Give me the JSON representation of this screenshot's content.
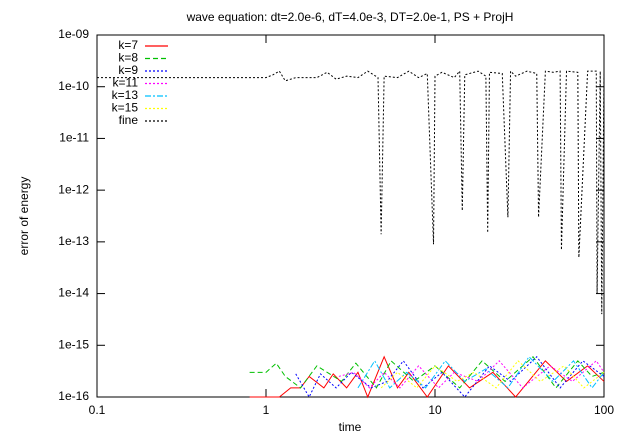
{
  "chart_data": {
    "type": "line",
    "title": "wave equation: dt=2.0e-6, dT=4.0e-3, DT=2.0e-1, PS + ProjH",
    "x_label": "time",
    "y_label": "error of energy",
    "log_x": true,
    "log_y": true,
    "legend": "top-left",
    "xlim": [
      0.1,
      100
    ],
    "xticks": [
      0.1,
      1,
      10,
      100
    ],
    "ylim": [
      1e-16,
      1e-09
    ],
    "yticks": [
      {
        "value": 1e-09,
        "label": "1e-09"
      },
      {
        "value": 1e-10,
        "label": "1e-10"
      },
      {
        "value": 1e-11,
        "label": "1e-11"
      },
      {
        "value": 1e-12,
        "label": "1e-12"
      },
      {
        "value": 1e-13,
        "label": "1e-13"
      },
      {
        "value": 1e-14,
        "label": "1e-14"
      },
      {
        "value": 1e-15,
        "label": "1e-15"
      },
      {
        "value": 1e-16,
        "label": "1e-16"
      }
    ],
    "series": [
      {
        "name": "k=7",
        "color": "#ff0000",
        "style": "solid",
        "x": [
          0.8,
          1.2,
          1.4,
          1.6,
          1.8,
          2.2,
          2.5,
          3,
          3.5,
          4,
          5,
          6,
          7,
          9,
          12,
          16,
          22,
          30,
          45,
          60,
          80,
          100
        ],
        "values": [
          1e-16,
          1e-16,
          1.5e-16,
          1.5e-16,
          2.5e-16,
          1.5e-16,
          2.8e-16,
          1.5e-16,
          3e-16,
          1e-16,
          6e-16,
          1.5e-16,
          3e-16,
          1e-16,
          4e-16,
          1.5e-16,
          3e-16,
          1e-16,
          5e-16,
          2e-16,
          4e-16,
          2e-16
        ]
      },
      {
        "name": "k=8",
        "color": "#00c000",
        "style": "dashed",
        "x": [
          0.8,
          1,
          1.15,
          1.3,
          1.6,
          2,
          2.8,
          3.4,
          4.5,
          5.5,
          7.5,
          10,
          14,
          19,
          26,
          38,
          52,
          70,
          85,
          100
        ],
        "values": [
          3e-16,
          3e-16,
          4.5e-16,
          2.5e-16,
          1.5e-16,
          4e-16,
          2e-16,
          4.5e-16,
          1.5e-16,
          5e-16,
          2e-16,
          4e-16,
          1.5e-16,
          5e-16,
          2e-16,
          6e-16,
          1.5e-16,
          5e-16,
          2.5e-16,
          3e-16
        ]
      },
      {
        "name": "k=9",
        "color": "#0000ff",
        "style": "dotted",
        "x": [
          1.5,
          1.8,
          2.1,
          2.6,
          3.2,
          4.2,
          5.2,
          6.5,
          8.5,
          11,
          15,
          21,
          28,
          40,
          55,
          75,
          100
        ],
        "values": [
          2.8e-16,
          1e-16,
          2.8e-16,
          1.5e-16,
          3e-16,
          1.5e-16,
          2e-16,
          5e-16,
          1.5e-16,
          3e-16,
          1e-16,
          4e-16,
          2e-16,
          6e-16,
          1.5e-16,
          5e-16,
          2.5e-16
        ]
      },
      {
        "name": "k=11",
        "color": "#ff00ff",
        "style": "dotted",
        "x": [
          2.7,
          3.3,
          4.1,
          5,
          6.2,
          8,
          10.5,
          13,
          18,
          24,
          33,
          48,
          65,
          90,
          100
        ],
        "values": [
          2.5e-16,
          3e-16,
          1.5e-16,
          3e-16,
          1.5e-16,
          4e-16,
          1.5e-16,
          3e-16,
          2e-16,
          5e-16,
          1.5e-16,
          4e-16,
          2e-16,
          5e-16,
          3e-16
        ]
      },
      {
        "name": "k=13",
        "color": "#00c0ff",
        "style": "dashdot",
        "x": [
          3.5,
          4.4,
          5.4,
          6.8,
          8.8,
          11.5,
          15,
          20,
          27,
          36,
          50,
          66,
          85,
          100
        ],
        "values": [
          1.5e-16,
          5e-16,
          1.5e-16,
          3e-16,
          1.5e-16,
          5e-16,
          2e-16,
          3.5e-16,
          1.5e-16,
          6e-16,
          2e-16,
          5e-16,
          1.5e-16,
          3e-16
        ]
      },
      {
        "name": "k=15",
        "color": "#ffff00",
        "style": "dotted",
        "x": [
          4.8,
          6,
          7.8,
          10,
          13.5,
          17,
          23,
          31,
          42,
          58,
          76,
          100
        ],
        "values": [
          1.5e-16,
          3e-16,
          1.5e-16,
          4e-16,
          2e-16,
          3e-16,
          1.5e-16,
          5e-16,
          2e-16,
          4e-16,
          1.5e-16,
          3e-16
        ]
      },
      {
        "name": "fine",
        "color": "#000000",
        "style": "dotted",
        "x": [
          0.1,
          0.5,
          1,
          1.1,
          1.2,
          1.3,
          1.5,
          2,
          2.3,
          2.6,
          3,
          3.5,
          4,
          4.6,
          4.8,
          5,
          6,
          7,
          8,
          9,
          9.8,
          10,
          11,
          13,
          14,
          14.5,
          15,
          18,
          20,
          20.5,
          21,
          25,
          27,
          28,
          30,
          35,
          40,
          41,
          45,
          50,
          55,
          56,
          60,
          70,
          71,
          80,
          90,
          91,
          95,
          97,
          100
        ],
        "values": [
          1.5e-10,
          1.5e-10,
          1.5e-10,
          1.7e-10,
          2e-10,
          1.3e-10,
          1.5e-10,
          1.5e-10,
          1.9e-10,
          1.4e-10,
          1.6e-10,
          1.5e-10,
          2e-10,
          1.5e-10,
          1.4e-13,
          1.6e-10,
          1.5e-10,
          2e-10,
          1.5e-10,
          1.8e-10,
          9e-14,
          1.6e-10,
          1.9e-10,
          1.5e-10,
          2e-10,
          4e-13,
          1.7e-10,
          2e-10,
          1.6e-10,
          1.5e-13,
          1.9e-10,
          1.8e-10,
          3e-13,
          2e-10,
          1.6e-10,
          2e-10,
          1.8e-10,
          3e-13,
          2e-10,
          1.9e-10,
          2e-10,
          7e-14,
          2e-10,
          1.9e-10,
          5e-14,
          2e-10,
          2e-10,
          1e-14,
          2e-10,
          4e-15,
          2e-10
        ]
      }
    ]
  }
}
